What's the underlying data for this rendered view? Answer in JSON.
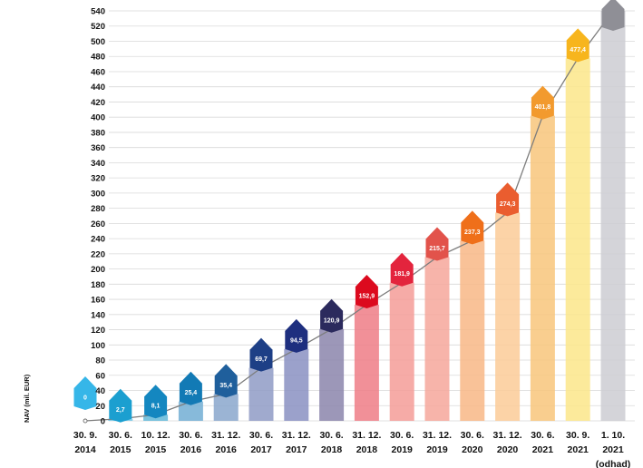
{
  "chart_data": {
    "type": "bar",
    "ylabel": "NAV (mil. EUR)",
    "ylim": [
      0,
      540
    ],
    "ytick_step": 20,
    "grid": true,
    "categories": [
      [
        "30. 9.",
        "2014"
      ],
      [
        "30. 6.",
        "2015"
      ],
      [
        "10. 12.",
        "2015"
      ],
      [
        "30. 6.",
        "2016"
      ],
      [
        "31. 12.",
        "2016"
      ],
      [
        "30. 6.",
        "2017"
      ],
      [
        "31. 12.",
        "2017"
      ],
      [
        "30. 6.",
        "2018"
      ],
      [
        "31. 12.",
        "2018"
      ],
      [
        "30. 6.",
        "2019"
      ],
      [
        "31. 12.",
        "2019"
      ],
      [
        "30. 6.",
        "2020"
      ],
      [
        "31. 12.",
        "2020"
      ],
      [
        "30. 6.",
        "2021"
      ],
      [
        "30. 9.",
        "2021"
      ],
      [
        "1. 10.",
        "2021",
        "(odhad)"
      ]
    ],
    "values": [
      0,
      2.7,
      8.1,
      25.4,
      35.4,
      69.7,
      94.5,
      120.9,
      152.9,
      181.9,
      215.7,
      237.3,
      274.3,
      401.8,
      477.4,
      540
    ],
    "labels": [
      "0",
      "2,7",
      "8,1",
      "25,4",
      "35,4",
      "69,7",
      "94,5",
      "120,9",
      "152,9",
      "181,9",
      "215,7",
      "237,3",
      "274,3",
      "401,8",
      "477,4",
      ""
    ],
    "bar_colors": [
      "#8fd7f2",
      "#72c7e6",
      "#63b8d8",
      "#72aed3",
      "#8aa7cc",
      "#8f9bc6",
      "#8a90c2",
      "#8b85ab",
      "#ef7d86",
      "#f49c98",
      "#f6a79b",
      "#f8b786",
      "#fbcb98",
      "#f8c67b",
      "#fbe68a",
      "#cdcdd2"
    ],
    "marker_colors": [
      "#36b6e8",
      "#1b9fd0",
      "#1487c0",
      "#127ab5",
      "#1f5f9c",
      "#1d3f86",
      "#1e2f7f",
      "#2b2a5d",
      "#dc0a1e",
      "#e3243d",
      "#e2534b",
      "#ef6f1a",
      "#ea5d2f",
      "#f29a2e",
      "#f7b51d",
      "#8f8f96"
    ]
  }
}
